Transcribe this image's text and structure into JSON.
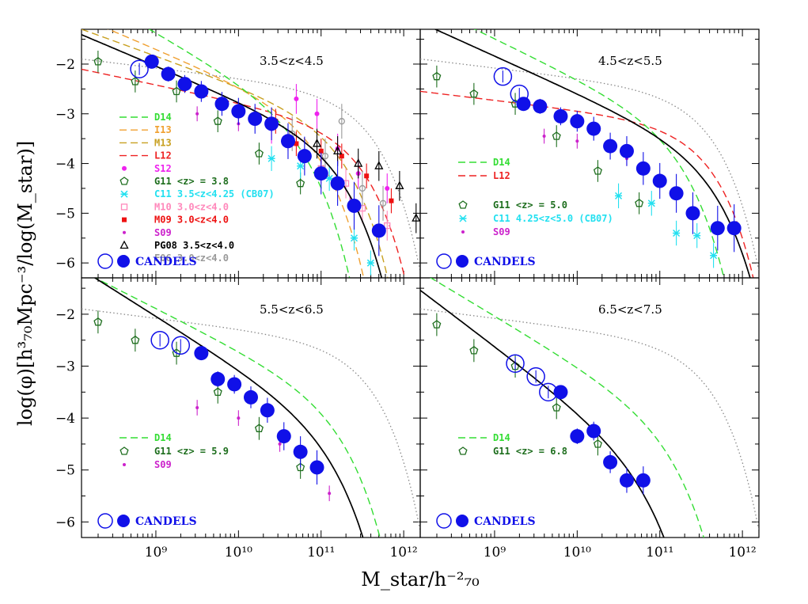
{
  "figure": {
    "ylabel": "log(φ)[h³₇₀Mpc⁻³/log(M_star)]",
    "xlabel": "M_star/h⁻²₇₀",
    "x_tick_labels": [
      "10⁹",
      "10¹⁰",
      "10¹¹",
      "10¹²"
    ],
    "y_tick_labels": [
      "−2",
      "−3",
      "−4",
      "−5",
      "−6"
    ]
  },
  "colors": {
    "candels": "#1010e8",
    "d14": "#33dd33",
    "i13": "#f0a030",
    "m13": "#c8a020",
    "l12": "#ee2222",
    "s12": "#ee22ee",
    "g11": "#1e6e1e",
    "c11": "#22e0f0",
    "m10": "#ff88bb",
    "m09": "#ee1111",
    "s09": "#cc22cc",
    "pg08": "#000000",
    "f06": "#999999",
    "fit": "#000000",
    "dotted": "#888888"
  },
  "chart_data": [
    {
      "type": "scatter",
      "panel": "3.5<z<4.5",
      "xscale": "log",
      "xlim": [
        8.1,
        12.2
      ],
      "ylim": [
        -6.3,
        -1.3
      ],
      "legend": [
        {
          "label": "D14",
          "color": "#33dd33",
          "style": "dashed"
        },
        {
          "label": "I13",
          "color": "#f0a030",
          "style": "dashed"
        },
        {
          "label": "M13",
          "color": "#c8a020",
          "style": "dashed"
        },
        {
          "label": "L12",
          "color": "#ee2222",
          "style": "dashed"
        },
        {
          "label": "S12",
          "color": "#ee22ee",
          "marker": "dot"
        },
        {
          "label": "G11 <z> = 3.8",
          "color": "#1e6e1e",
          "marker": "pentagon"
        },
        {
          "label": "C11 3.5<z<4.25 (CB07)",
          "color": "#22e0f0",
          "marker": "star"
        },
        {
          "label": "M10 3.0<z<4.0",
          "color": "#ff88bb",
          "marker": "open-square"
        },
        {
          "label": "M09 3.0<z<4.0",
          "color": "#ee1111",
          "marker": "square"
        },
        {
          "label": "S09",
          "color": "#cc22cc",
          "marker": "small-dot"
        },
        {
          "label": "PG08 3.5<z<4.0",
          "color": "#000000",
          "marker": "open-triangle"
        },
        {
          "label": "F06 3.0<z<4.0",
          "color": "#999999",
          "marker": "open-circle"
        }
      ],
      "candels_label": "CANDELS",
      "candels_open": [
        [
          8.8,
          -2.1
        ]
      ],
      "candels_filled": [
        [
          8.95,
          -1.95
        ],
        [
          9.15,
          -2.2
        ],
        [
          9.35,
          -2.4
        ],
        [
          9.55,
          -2.55
        ],
        [
          9.8,
          -2.8
        ],
        [
          10.0,
          -2.95
        ],
        [
          10.2,
          -3.1
        ],
        [
          10.4,
          -3.2
        ],
        [
          10.6,
          -3.55
        ],
        [
          10.8,
          -3.85
        ],
        [
          11.0,
          -4.2
        ],
        [
          11.2,
          -4.4
        ],
        [
          11.4,
          -4.85
        ],
        [
          11.7,
          -5.35
        ]
      ],
      "s12": [
        [
          10.4,
          -3.3
        ],
        [
          10.7,
          -2.7
        ],
        [
          10.95,
          -3.0
        ],
        [
          11.2,
          -3.7
        ],
        [
          11.45,
          -4.2
        ],
        [
          11.8,
          -4.5
        ]
      ],
      "g11": [
        [
          8.3,
          -1.95
        ],
        [
          8.75,
          -2.35
        ],
        [
          9.25,
          -2.55
        ],
        [
          9.75,
          -3.15
        ],
        [
          10.25,
          -3.8
        ],
        [
          10.75,
          -4.4
        ]
      ],
      "c11": [
        [
          10.4,
          -3.9
        ],
        [
          10.75,
          -4.05
        ],
        [
          11.1,
          -4.3
        ],
        [
          11.4,
          -5.5
        ],
        [
          11.6,
          -6.0
        ]
      ],
      "m10": [
        [
          11.0,
          -4.1
        ],
        [
          11.3,
          -4.4
        ],
        [
          11.5,
          -4.9
        ],
        [
          11.8,
          -5.25
        ]
      ],
      "m09": [
        [
          10.45,
          -3.15
        ],
        [
          10.7,
          -3.6
        ],
        [
          11.0,
          -3.75
        ],
        [
          11.25,
          -3.85
        ],
        [
          11.55,
          -4.25
        ],
        [
          11.85,
          -4.75
        ]
      ],
      "s09": [
        [
          9.5,
          -3.0
        ],
        [
          10.0,
          -3.2
        ],
        [
          10.6,
          -3.6
        ],
        [
          11.35,
          -4.8
        ]
      ],
      "pg08": [
        [
          10.95,
          -3.6
        ],
        [
          11.2,
          -3.75
        ],
        [
          11.45,
          -4.0
        ],
        [
          11.7,
          -4.05
        ],
        [
          11.95,
          -4.45
        ],
        [
          12.15,
          -5.1
        ]
      ],
      "f06": [
        [
          10.65,
          -3.4
        ],
        [
          11.05,
          -3.85
        ],
        [
          11.25,
          -3.15
        ],
        [
          11.5,
          -4.5
        ],
        [
          11.75,
          -4.8
        ]
      ],
      "fit_schechter": {
        "logphi": -3.8,
        "logm": 11.0,
        "alpha": -1.7
      },
      "d14_schechter": {
        "logphi": -3.2,
        "logm": 10.55,
        "alpha": -1.95
      },
      "l12_schechter": {
        "logphi": -3.55,
        "logm": 11.2,
        "alpha": -1.35
      },
      "i13_schechter": {
        "logphi": -3.25,
        "logm": 10.7,
        "alpha": -1.7
      },
      "m13_schechter": {
        "logphi": -3.4,
        "logm": 11.0,
        "alpha": -1.6
      },
      "dotted_schechter": {
        "logphi": -2.9,
        "logm": 11.3,
        "alpha": -1.2
      }
    },
    {
      "type": "scatter",
      "panel": "4.5<z<5.5",
      "xscale": "log",
      "xlim": [
        8.1,
        12.2
      ],
      "ylim": [
        -6.3,
        -1.3
      ],
      "legend": [
        {
          "label": "D14",
          "color": "#33dd33",
          "style": "dashed"
        },
        {
          "label": "L12",
          "color": "#ee2222",
          "style": "dashed"
        },
        {
          "label": "G11 <z> = 5.0",
          "color": "#1e6e1e",
          "marker": "pentagon"
        },
        {
          "label": "C11 4.25<z<5.0 (CB07)",
          "color": "#22e0f0",
          "marker": "star"
        },
        {
          "label": "S09",
          "color": "#cc22cc",
          "marker": "small-dot"
        }
      ],
      "candels_label": "CANDELS",
      "candels_open": [
        [
          9.1,
          -2.25
        ],
        [
          9.3,
          -2.6
        ]
      ],
      "candels_filled": [
        [
          9.35,
          -2.8
        ],
        [
          9.55,
          -2.85
        ],
        [
          9.8,
          -3.05
        ],
        [
          10.0,
          -3.15
        ],
        [
          10.2,
          -3.3
        ],
        [
          10.4,
          -3.65
        ],
        [
          10.6,
          -3.75
        ],
        [
          10.8,
          -4.1
        ],
        [
          11.0,
          -4.35
        ],
        [
          11.2,
          -4.6
        ],
        [
          11.4,
          -5.0
        ],
        [
          11.7,
          -5.3
        ],
        [
          11.9,
          -5.3
        ]
      ],
      "g11": [
        [
          8.3,
          -2.25
        ],
        [
          8.75,
          -2.6
        ],
        [
          9.25,
          -2.8
        ],
        [
          9.75,
          -3.45
        ],
        [
          10.25,
          -4.15
        ],
        [
          10.75,
          -4.8
        ]
      ],
      "c11": [
        [
          10.5,
          -4.65
        ],
        [
          10.9,
          -4.8
        ],
        [
          11.2,
          -5.4
        ],
        [
          11.45,
          -5.45
        ],
        [
          11.65,
          -5.85
        ]
      ],
      "s09": [
        [
          9.6,
          -3.45
        ],
        [
          10.0,
          -3.55
        ],
        [
          10.6,
          -3.9
        ]
      ],
      "fit_schechter": {
        "logphi": -4.0,
        "logm": 11.4,
        "alpha": -1.75
      },
      "d14_schechter": {
        "logphi": -3.45,
        "logm": 11.0,
        "alpha": -1.8
      },
      "l12_schechter": {
        "logphi": -3.55,
        "logm": 11.3,
        "alpha": -1.2
      },
      "dotted_schechter": {
        "logphi": -2.9,
        "logm": 11.3,
        "alpha": -1.2
      }
    },
    {
      "type": "scatter",
      "panel": "5.5<z<6.5",
      "xscale": "log",
      "xlim": [
        8.1,
        12.2
      ],
      "ylim": [
        -6.3,
        -1.3
      ],
      "legend": [
        {
          "label": "D14",
          "color": "#33dd33",
          "style": "dashed"
        },
        {
          "label": "G11 <z> = 5.9",
          "color": "#1e6e1e",
          "marker": "pentagon"
        },
        {
          "label": "S09",
          "color": "#cc22cc",
          "marker": "small-dot"
        }
      ],
      "candels_label": "CANDELS",
      "candels_open": [
        [
          9.05,
          -2.5
        ],
        [
          9.3,
          -2.6
        ]
      ],
      "candels_filled": [
        [
          9.55,
          -2.75
        ],
        [
          9.75,
          -3.25
        ],
        [
          9.95,
          -3.35
        ],
        [
          10.15,
          -3.6
        ],
        [
          10.35,
          -3.85
        ],
        [
          10.55,
          -4.35
        ],
        [
          10.75,
          -4.65
        ],
        [
          10.95,
          -4.95
        ]
      ],
      "g11": [
        [
          8.3,
          -2.15
        ],
        [
          8.75,
          -2.5
        ],
        [
          9.25,
          -2.75
        ],
        [
          9.75,
          -3.5
        ],
        [
          10.25,
          -4.2
        ],
        [
          10.75,
          -4.95
        ]
      ],
      "s09": [
        [
          9.5,
          -3.8
        ],
        [
          10.0,
          -4.0
        ],
        [
          10.5,
          -4.5
        ],
        [
          11.1,
          -5.45
        ]
      ],
      "fit_schechter": {
        "logphi": -4.3,
        "logm": 10.9,
        "alpha": -2.0
      },
      "d14_schechter": {
        "logphi": -3.85,
        "logm": 11.0,
        "alpha": -1.8
      },
      "dotted_schechter": {
        "logphi": -2.9,
        "logm": 11.3,
        "alpha": -1.2
      }
    },
    {
      "type": "scatter",
      "panel": "6.5<z<7.5",
      "xscale": "log",
      "xlim": [
        8.1,
        12.2
      ],
      "ylim": [
        -6.3,
        -1.3
      ],
      "legend": [
        {
          "label": "D14",
          "color": "#33dd33",
          "style": "dashed"
        },
        {
          "label": "G11 <z> = 6.8",
          "color": "#1e6e1e",
          "marker": "pentagon"
        }
      ],
      "candels_label": "CANDELS",
      "candels_open": [
        [
          9.25,
          -2.95
        ],
        [
          9.5,
          -3.2
        ],
        [
          9.65,
          -3.5
        ]
      ],
      "candels_filled": [
        [
          9.8,
          -3.5
        ],
        [
          10.0,
          -4.35
        ],
        [
          10.2,
          -4.25
        ],
        [
          10.4,
          -4.85
        ],
        [
          10.6,
          -5.2
        ],
        [
          10.8,
          -5.2
        ]
      ],
      "g11": [
        [
          8.3,
          -2.2
        ],
        [
          8.75,
          -2.7
        ],
        [
          9.25,
          -3.0
        ],
        [
          9.75,
          -3.8
        ],
        [
          10.25,
          -4.5
        ]
      ],
      "fit_schechter": {
        "logphi": -4.9,
        "logm": 10.6,
        "alpha": -2.2
      },
      "d14_schechter": {
        "logphi": -4.2,
        "logm": 10.9,
        "alpha": -1.95
      },
      "dotted_schechter": {
        "logphi": -2.9,
        "logm": 11.3,
        "alpha": -1.2
      }
    }
  ]
}
